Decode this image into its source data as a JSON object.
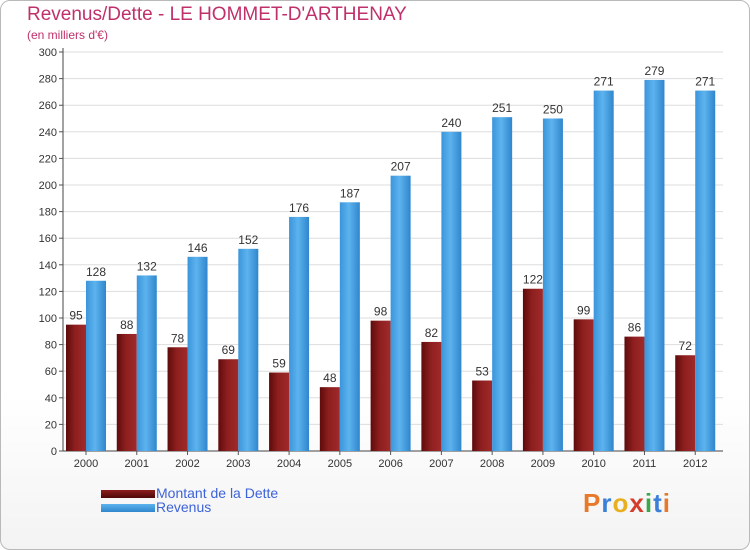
{
  "title": "Revenus/Dette - LE HOMMET-D'ARTHENAY",
  "subtitle": "(en milliers d'€)",
  "chart_data": {
    "type": "bar",
    "title": "Revenus/Dette - LE HOMMET-D'ARTHENAY",
    "ylabel": "(en milliers d'€)",
    "xlabel": "",
    "ylim": [
      0,
      300
    ],
    "yticks": [
      "0",
      "20",
      "40",
      "60",
      "80",
      "100",
      "120",
      "140",
      "160",
      "180",
      "200",
      "220",
      "240",
      "260",
      "280",
      "300"
    ],
    "grid": true,
    "legend_position": "bottom-left",
    "categories": [
      "2000",
      "2001",
      "2002",
      "2003",
      "2004",
      "2005",
      "2006",
      "2007",
      "2008",
      "2009",
      "2010",
      "2011",
      "2012"
    ],
    "series": [
      {
        "name": "Montant de la Dette",
        "color": "#8b1a1a",
        "values": [
          95,
          88,
          78,
          69,
          59,
          48,
          98,
          82,
          53,
          122,
          99,
          86,
          72
        ]
      },
      {
        "name": "Revenus",
        "color": "#4aa3e6",
        "values": [
          128,
          132,
          146,
          152,
          176,
          187,
          207,
          240,
          251,
          250,
          271,
          279,
          271
        ]
      }
    ]
  },
  "legend": {
    "items": [
      {
        "label": "Montant de la Dette"
      },
      {
        "label": "Revenus"
      }
    ]
  },
  "logo": {
    "text": "Proxiti",
    "colors": [
      "#e8782a",
      "#3a7fd8",
      "#e8b020",
      "#d63c2c",
      "#3aa84a",
      "#3a7fd8",
      "#e8782a"
    ]
  }
}
